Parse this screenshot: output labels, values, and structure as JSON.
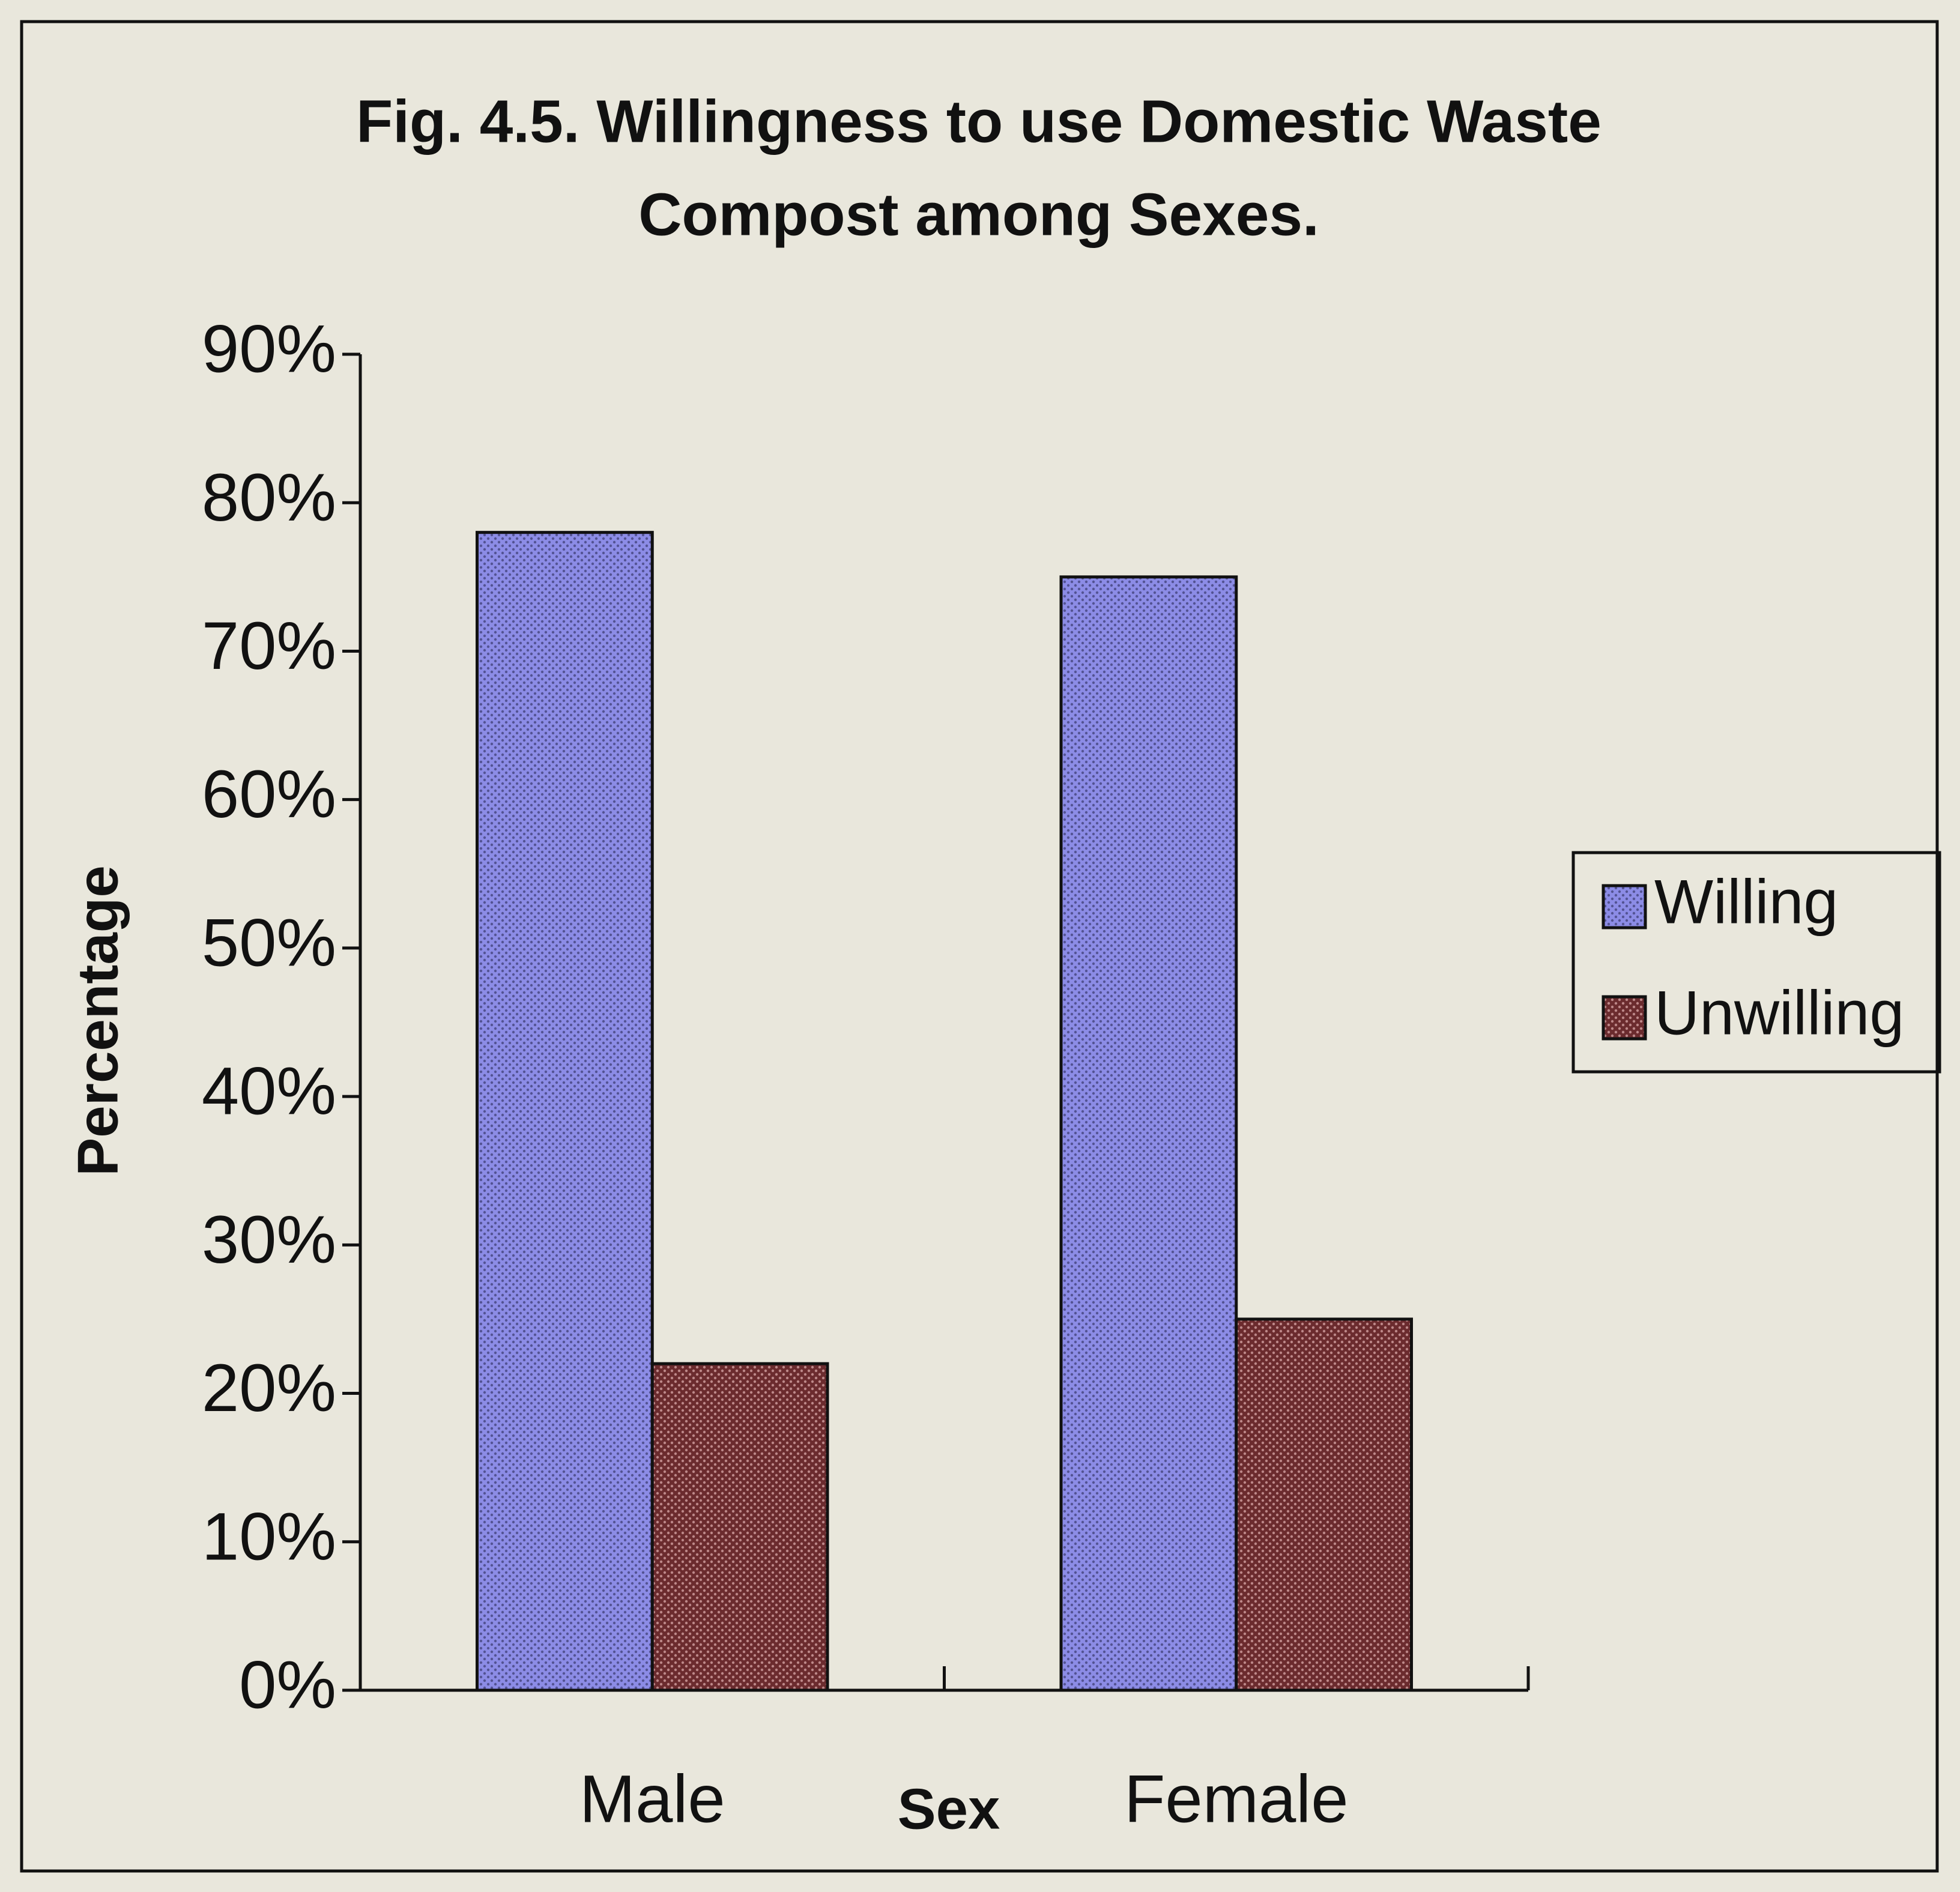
{
  "chart_data": {
    "type": "bar",
    "title": [
      "Fig. 4.5. Willingness to use Domestic Waste",
      "Compost among Sexes."
    ],
    "x_label": "Sex",
    "y_label": "Percentage",
    "categories": [
      "Male",
      "Female"
    ],
    "series": [
      {
        "name": "Willing",
        "color": "#8c8ce6",
        "values": [
          78,
          75
        ]
      },
      {
        "name": "Unwilling",
        "color": "#6b2b2e",
        "values": [
          22,
          25
        ]
      }
    ],
    "ylim": [
      0,
      90
    ],
    "yticks": [
      {
        "value": 0,
        "label": "0%"
      },
      {
        "value": 10,
        "label": "10%"
      },
      {
        "value": 20,
        "label": "20%"
      },
      {
        "value": 30,
        "label": "30%"
      },
      {
        "value": 40,
        "label": "40%"
      },
      {
        "value": 50,
        "label": "50%"
      },
      {
        "value": 60,
        "label": "60%"
      },
      {
        "value": 70,
        "label": "70%"
      },
      {
        "value": 80,
        "label": "80%"
      },
      {
        "value": 90,
        "label": "90%"
      }
    ],
    "grid": false,
    "legend": "right"
  }
}
